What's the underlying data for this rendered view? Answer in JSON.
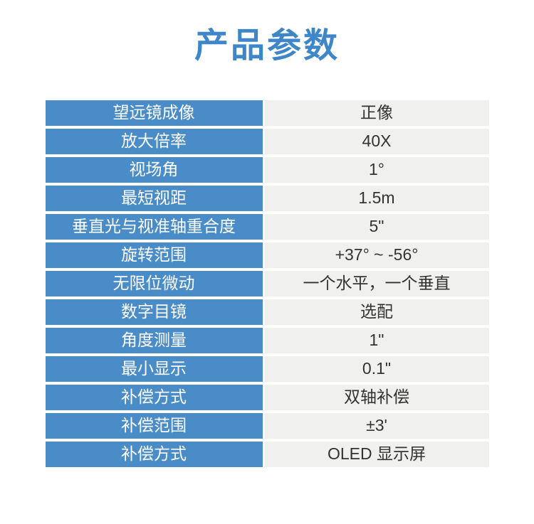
{
  "page": {
    "title": "产品参数"
  },
  "colors": {
    "title_blue": "#3d86c8",
    "label_bg": "#4a8cc7",
    "label_text": "#ffffff",
    "value_bg": "#f0f0ef",
    "value_text": "#333333",
    "page_bg": "#ffffff"
  },
  "spec_table": {
    "rows": [
      {
        "label": "望远镜成像",
        "value": "正像"
      },
      {
        "label": "放大倍率",
        "value": "40X"
      },
      {
        "label": "视场角",
        "value": "1°"
      },
      {
        "label": "最短视距",
        "value": "1.5m"
      },
      {
        "label": "垂直光与视准轴重合度",
        "value": "5\""
      },
      {
        "label": "旋转范围",
        "value": "+37° ~ -56°"
      },
      {
        "label": "无限位微动",
        "value": "一个水平，一个垂直"
      },
      {
        "label": "数字目镜",
        "value": "选配"
      },
      {
        "label": "角度测量",
        "value": "1\""
      },
      {
        "label": "最小显示",
        "value": "0.1\""
      },
      {
        "label": "补偿方式",
        "value": "双轴补偿"
      },
      {
        "label": "补偿范围",
        "value": "±3'"
      },
      {
        "label": "补偿方式",
        "value": "OLED 显示屏"
      }
    ]
  }
}
